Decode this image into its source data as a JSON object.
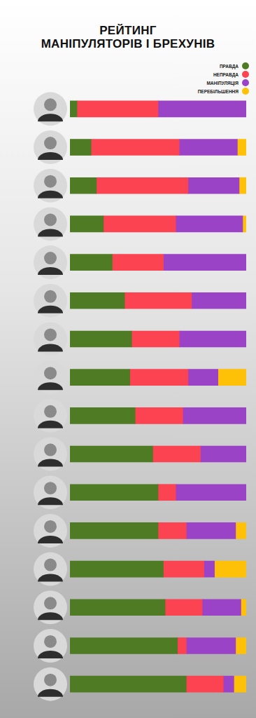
{
  "chart_data": {
    "type": "bar",
    "title": "РЕЙТИНГ\nМАНІПУЛЯТОРІВ І БРЕХУНІВ",
    "orientation": "horizontal",
    "stacked": true,
    "grid": false,
    "tick_labels": false,
    "legend": "top-right",
    "xlim": [
      0,
      100
    ],
    "categories": [
      null,
      null,
      null,
      null,
      null,
      null,
      null,
      null,
      null,
      null,
      null,
      null,
      null,
      null,
      null,
      null
    ],
    "series": [
      {
        "name": "ПРАВДА",
        "color": "#4f7b24",
        "values": [
          4,
          12,
          15,
          19,
          24,
          31,
          35,
          34,
          37,
          47,
          50,
          50,
          53,
          54,
          61,
          66
        ]
      },
      {
        "name": "НЕПРАВДА",
        "color": "#fb4351",
        "values": [
          46,
          50,
          52,
          41,
          29,
          38,
          27,
          33,
          27,
          27,
          10,
          16,
          23,
          21,
          5,
          21
        ]
      },
      {
        "name": "МАНІПУЛЯЦІЯ",
        "color": "#9b43c7",
        "values": [
          50,
          33,
          29,
          38,
          47,
          31,
          38,
          17,
          36,
          26,
          40,
          28,
          6,
          22,
          28,
          6
        ]
      },
      {
        "name": "ПЕРЕБІЛЬШЕННЯ",
        "color": "#ffc107",
        "values": [
          0,
          5,
          4,
          2,
          0,
          0,
          0,
          16,
          0,
          0,
          0,
          6,
          18,
          3,
          6,
          7
        ]
      }
    ]
  }
}
